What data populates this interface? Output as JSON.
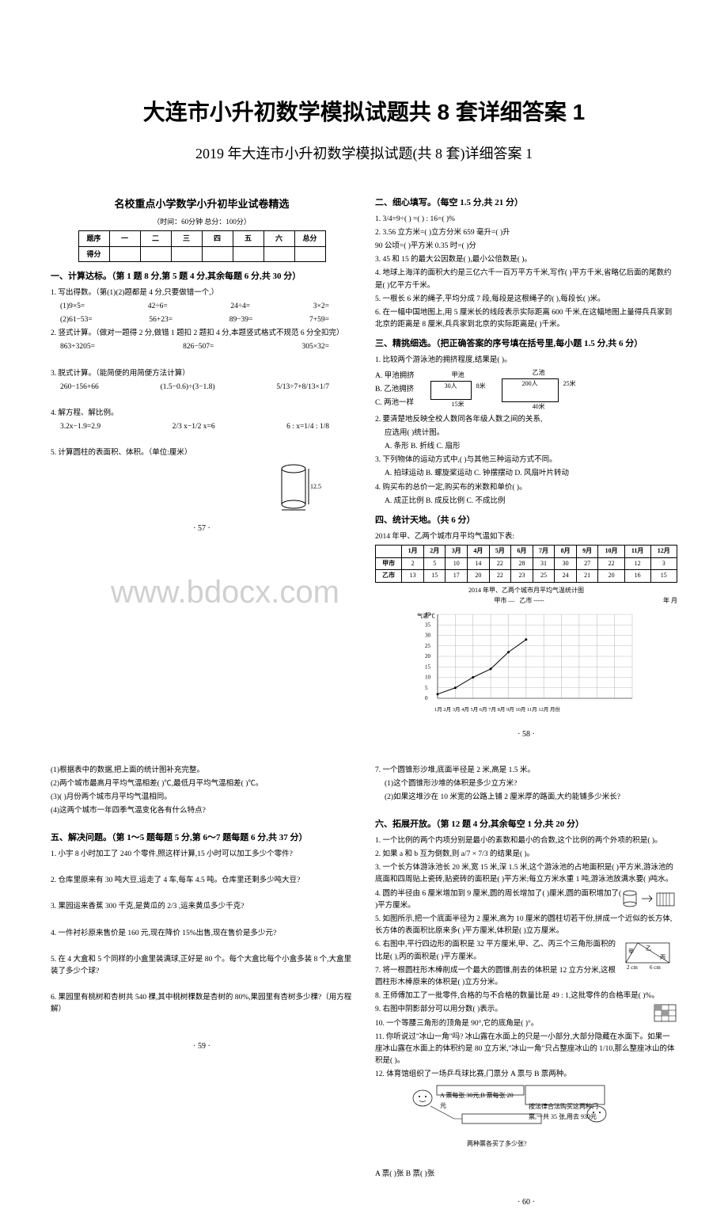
{
  "title": "大连市小升初数学模拟试题共 8 套详细答案 1",
  "subtitle": "2019 年大连市小升初数学模拟试题(共 8 套)详细答案 1",
  "left_header": "名校重点小学数学小升初毕业试卷精选",
  "timing": "（时间：60分钟   总分：100分）",
  "score_table": {
    "header_label": "题序",
    "cols": [
      "一",
      "二",
      "三",
      "四",
      "五",
      "六",
      "总分"
    ],
    "row2_label": "得分"
  },
  "sec1": {
    "title": "一、计算达标。（第 1 题 8 分,第 5 题 4 分,其余每题 6 分,共 30 分）",
    "q1": "1. 写出得数。（第(1)(2)题都是 4 分,只要做错一个,）",
    "q1a": "(1)9×5=",
    "q1b": "42÷6=",
    "q1c": "24÷4=",
    "q1d": "3×2=",
    "q2a": "(2)61−53=",
    "q2b": "56+23=",
    "q2c": "89−39=",
    "q2d": "7+59=",
    "q2": "2. 竖式计算。（做对一题得 2 分,做错 1 题扣 2 题扣 4 分,本题竖式格式不规范 6 分全扣完）",
    "q2e1": "863+3205=",
    "q2e2": "826−507=",
    "q2e3": "305×32=",
    "q3": "3. 脱式计算。（能简便的用简便方法计算）",
    "q3e1": "260−156+66",
    "q3e2": "(1.5−0.6)÷(3−1.8)",
    "q3e3": "5/13÷7+8/13×1/7",
    "q4": "4. 解方程、解比例。",
    "q4e1": "3.2x−1.9=2.9",
    "q4e2": "2/3 x−1/2 x=6",
    "q4e3": "6 : x=1/4 : 1/8",
    "q5": "5. 计算圆柱的表面积、体积。（单位:厘米）"
  },
  "cylinder": {
    "radius_label": "",
    "height_label": "12.5"
  },
  "sec2": {
    "title": "二、细心填写。（每空 1.5 分,共 21 分）",
    "q1": "1.  3/4=9÷(    ) =(    ) : 16=(    )%",
    "q2": "2.  3.56 立方米=(    )立方分米       659 毫升=(    )升",
    "q2b": "    90 公顷=(    )平方米            0.35 时=(    )分",
    "q3": "3.  45 和 15 的最大公因数是(    ),最小公倍数是(    )。",
    "q4": "4.  地球上海洋的面积大约是三亿六千一百万平方千米,写作(    )平方千米,省略亿后面的尾数约是(    )亿平方千米。",
    "q5": "5.  一根长 6 米的绳子,平均分成 7 段,每段是这根绳子的(    ),每段长(    )米。",
    "q6": "6.  在一幅中国地图上,用 5 厘米长的线段表示实际距离 600 千米,在这幅地图上量得兵兵家到北京的距离是 8 厘米,兵兵家到北京的实际距离是(    )千米。"
  },
  "sec3": {
    "title": "三、精挑细选。（把正确答案的序号填在括号里,每小题 1.5 分,共 6 分）",
    "q1": "1. 比较两个游泳池的拥挤程度,结果是(    )。",
    "q1a": "A. 甲池拥挤",
    "q1b": "B. 乙池拥挤",
    "q1c": "C. 两池一样",
    "pool_a": {
      "label": "甲池",
      "people": "30人",
      "w": "8米",
      "h": "15米"
    },
    "pool_b": {
      "label": "乙池",
      "people": "200人",
      "w": "25米",
      "h": "40米"
    },
    "q2": "2. 要清楚地反映全校人数同各年级人数之间的关系,",
    "q2b": "应选用(    )统计图。",
    "q2a_opt": "A. 条形       B. 折线       C. 扇形",
    "q3": "3. 下列物体的运动方式中,(    )与其他三种运动方式不同。",
    "q3opts": "A. 拍球运动    B. 螺旋桨运动    C. 钟摆摆动    D. 风扇叶片转动",
    "q4": "4. 购买布的总价一定,购买布的米数和单价(    )。",
    "q4opts": "A. 成正比例    B. 成反比例    C. 不成比例"
  },
  "sec4": {
    "title": "四、统计天地。（共 6 分）",
    "desc": "2014 年甲、乙两个城市月平均气温如下表:",
    "table": {
      "months": [
        "1月",
        "2月",
        "3月",
        "4月",
        "5月",
        "6月",
        "7月",
        "8月",
        "9月",
        "10月",
        "11月",
        "12月"
      ],
      "row_a_label": "甲市",
      "row_a": [
        2,
        5,
        10,
        14,
        22,
        28,
        31,
        30,
        27,
        22,
        12,
        3
      ],
      "row_b_label": "乙市",
      "row_b": [
        13,
        15,
        17,
        20,
        22,
        23,
        25,
        24,
        21,
        20,
        16,
        15
      ]
    },
    "chart_title": "2014 年甲、乙两个城市月平均气温统计图",
    "legend_a": "甲市 —",
    "legend_b": "乙市 -----",
    "chart_time": "年  月",
    "y_label": "气温/℃",
    "y_ticks": [
      0,
      5,
      10,
      15,
      20,
      25,
      30,
      35,
      40
    ],
    "x_label": "1月 2月 3月 4月 5月 6月 7月 8月 9月 10月 11月 12月 月份"
  },
  "page57": "· 57 ·",
  "page58": "· 58 ·",
  "page59": "· 59 ·",
  "page60": "· 60 ·",
  "sec4q": {
    "q1": "(1)根据表中的数据,把上面的统计图补充完整。",
    "q2": "(2)两个城市最高月平均气温相差(    )℃,最低月平均气温相差(    )℃。",
    "q3": "(3)(    )月份两个城市月平均气温相同。",
    "q4": "(4)这两个城市一年四季气温变化各有什么特点?"
  },
  "sec5": {
    "title": "五、解决问题。（第 1～5 题每题 5 分,第 6～7 题每题 6 分,共 37 分）",
    "q1": "1. 小宇 8 小时加工了 240 个零件,照这样计算,15 小时可以加工多少个零件?",
    "q2": "2. 仓库里原来有 30 吨大豆,运走了 4 车,每车 4.5 吨。仓库里还剩多少吨大豆?",
    "q3": "3. 果园运来香蕉 300 千克,是黄瓜的 2/3 ,运来黄瓜多少千克?",
    "q4": "4. 一件衬衫原来售价是 160 元,现在降价 15%出售,现在售价是多少元?",
    "q5": "5. 在 4 大盒和 5 个同样的小盒里装满球,正好是 80 个。每个大盒比每个小盒多装 8 个,大盒里装了多少个球?",
    "q6": "6. 果园里有桃树和杏树共 540 棵,其中桃树棵数是杏树的 80%,果园里有杏树多少棵?（用方程解）"
  },
  "sec5b": {
    "q7": "7. 一个圆锥形沙堆,底面半径是 2 米,高是 1.5 米。",
    "q7a": "(1)这个圆锥形沙堆的体积是多少立方米?",
    "q7b": "(2)如果这堆沙在 10 米宽的公路上铺 2 厘米厚的路面,大约能铺多少米长?"
  },
  "sec6": {
    "title": "六、拓展开放。（第 12 题 4 分,其余每空 1 分,共 20 分）",
    "q1": "1. 一个比例的两个内项分别是最小的素数和最小的合数,这个比例的两个外项的积是(    )。",
    "q2": "2. 如果 a 和 b 互为倒数,则 a/7 × 7/3 的结果是(    )。",
    "q3": "3. 一个长方体游泳池长 20 米,宽 15 米,深 1.5 米,这个游泳池的占地面积是(    )平方米,游泳池的底面和四周贴上瓷砖,贴瓷砖的面积是(    )平方米;每立方米水重 1 吨,游泳池放满水要(    )吨水。",
    "q4": "4. 圆的半径由 6 厘米增加到 9 厘米,圆的周长增加了(    )厘米,圆的面积增加了(    )平方厘米。",
    "q5": "5. 如图所示,把一个底面半径为 2 厘米,高为 10 厘米的圆柱切若干份,拼成一个近似的长方体,长方体的表面积比原来多(    )平方厘米,体积是(    )立方厘米。",
    "q6": "6. 右图中,平行四边形的面积是 32 平方厘米,甲、乙、丙三个三角形面积的比是(    ),丙的面积是(    )平方厘米。",
    "q7": "7. 将一根圆柱形木棒削成一个最大的圆锥,削去的体积是 12 立方分米,这根圆柱形木棒原来的体积是(    )立方分米。",
    "q8": "8. 王师傅加工了一批零件,合格的与不合格的数量比是 49 : 1,这批零件的合格率是(    )%。",
    "q9": "9. 右图中阴影部分可以用分数(    )表示。",
    "q10": "10. 一个等腰三角形的顶角是 90°,它的底角是(    )°。",
    "q11": "11. 你听说过\"冰山一角\"吗? 冰山露在水面上的只是一小部分,大部分隐藏在水面下。如果一座冰山露在水面上的体积约是 80 立方米,\"冰山一角\"只占整座冰山的 1/10,那么整座冰山的体积是(    )。",
    "q12": "12. 体育馆组织了一场乒乓球比赛,门票分 A 票与 B 票两种。",
    "ticket_a": "A 票每张 30元,B 票每张 20元",
    "ticket_b": "按法律合法购买这两种门票,一共 35 张,用去 930元",
    "ticket_q": "两种票各买了多少张?",
    "ticket_ans": "A 票(    )张   B 票(    )张"
  },
  "triangle": {
    "labels": [
      "甲",
      "乙",
      "丙"
    ],
    "base1": "2 cm",
    "base2": "6 cm"
  },
  "watermark": "www.bdocx.com"
}
